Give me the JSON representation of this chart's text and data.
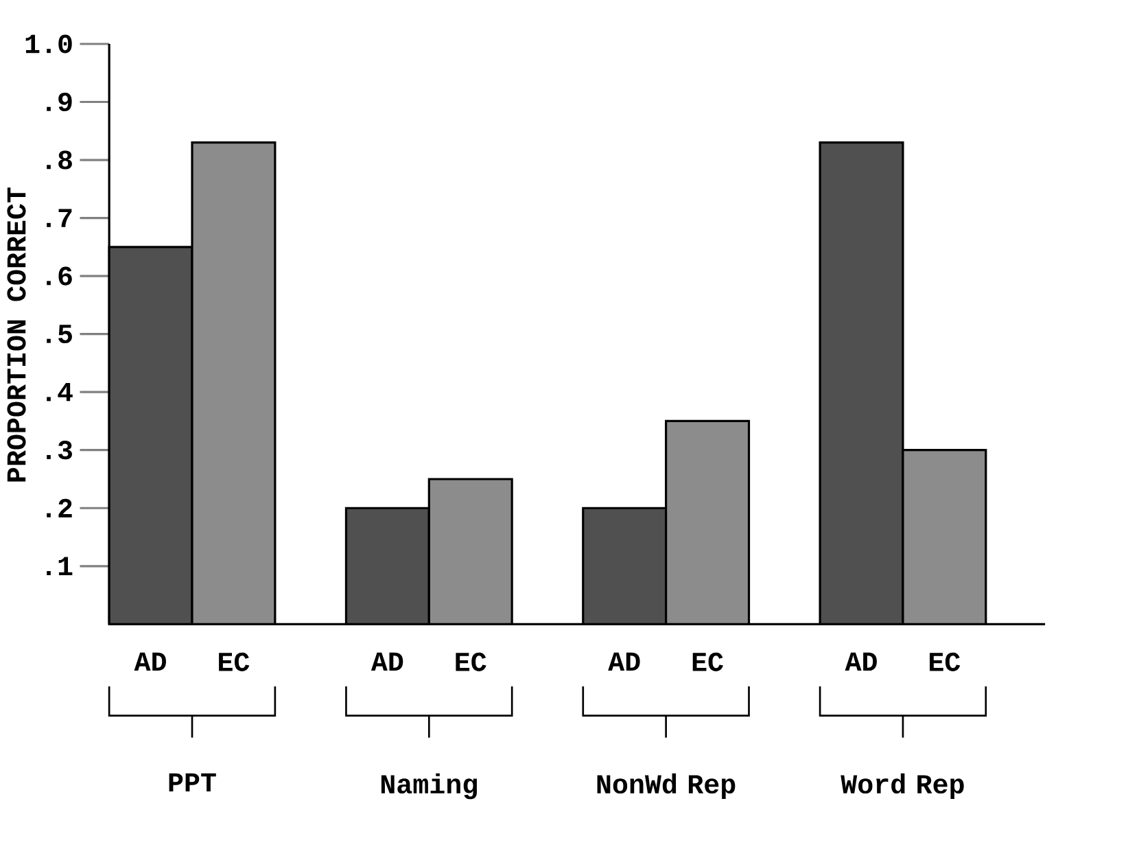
{
  "chart_data": {
    "type": "bar",
    "ylabel": "PROPORTION CORRECT",
    "categories": [
      "PPT",
      "Naming",
      "NonWd Rep",
      "Word Rep"
    ],
    "series": [
      {
        "name": "AD",
        "color": "#505050",
        "values": [
          0.65,
          0.2,
          0.2,
          0.83
        ]
      },
      {
        "name": "EC",
        "color": "#8c8c8c",
        "values": [
          0.83,
          0.25,
          0.35,
          0.3
        ]
      }
    ],
    "ylim": [
      0,
      1.0
    ],
    "yticks": [
      {
        "value": 0.1,
        "label": ".1"
      },
      {
        "value": 0.2,
        "label": ".2"
      },
      {
        "value": 0.3,
        "label": ".3"
      },
      {
        "value": 0.4,
        "label": ".4"
      },
      {
        "value": 0.5,
        "label": ".5"
      },
      {
        "value": 0.6,
        "label": ".6"
      },
      {
        "value": 0.7,
        "label": ".7"
      },
      {
        "value": 0.8,
        "label": ".8"
      },
      {
        "value": 0.9,
        "label": ".9"
      },
      {
        "value": 1.0,
        "label": "1.0"
      }
    ],
    "grid": false
  }
}
